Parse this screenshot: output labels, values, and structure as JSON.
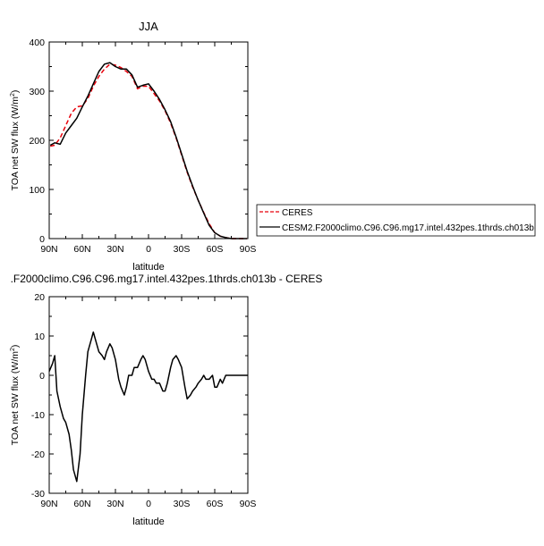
{
  "chart_data": [
    {
      "type": "line",
      "title": "JJA",
      "xlabel": "latitude",
      "ylabel": "TOA net SW flux (W/m",
      "ylabel_sup": "2",
      "ylabel_close": ")",
      "xlim": [
        90,
        -90
      ],
      "ylim": [
        0,
        400
      ],
      "xtick_values": [
        90,
        60,
        30,
        0,
        -30,
        -60,
        -90
      ],
      "xtick_labels": [
        "90N",
        "60N",
        "30N",
        "0",
        "30S",
        "60S",
        "90S"
      ],
      "ytick_values": [
        0,
        100,
        200,
        300,
        400
      ],
      "ytick_labels": [
        "0",
        "100",
        "200",
        "300",
        "400"
      ],
      "grid": false,
      "legend_position": "right of plot",
      "series": [
        {
          "name": "CERES",
          "color": "#e8000b",
          "dash": "dashed",
          "x": [
            89,
            85,
            80,
            75,
            70,
            65,
            60,
            55,
            50,
            45,
            40,
            35,
            30,
            25,
            20,
            15,
            10,
            5,
            0,
            -5,
            -10,
            -15,
            -20,
            -25,
            -30,
            -35,
            -40,
            -45,
            -50,
            -55,
            -60,
            -65,
            -70,
            -75,
            -80,
            -85,
            -89
          ],
          "y": [
            188,
            190,
            205,
            230,
            255,
            268,
            270,
            285,
            310,
            330,
            345,
            355,
            353,
            348,
            340,
            330,
            305,
            310,
            310,
            295,
            280,
            260,
            235,
            205,
            170,
            135,
            105,
            78,
            53,
            30,
            12,
            5,
            2,
            0,
            0,
            0,
            0
          ]
        },
        {
          "name": "CESM2.F2000climo.C96.C96.mg17.intel.432pes.1thrds.ch013b",
          "color": "#000000",
          "dash": "solid",
          "x": [
            89,
            85,
            80,
            75,
            70,
            65,
            60,
            55,
            50,
            45,
            40,
            35,
            30,
            25,
            20,
            15,
            10,
            5,
            0,
            -5,
            -10,
            -15,
            -20,
            -25,
            -30,
            -35,
            -40,
            -45,
            -50,
            -55,
            -60,
            -65,
            -70,
            -75,
            -80,
            -85,
            -89
          ],
          "y": [
            190,
            195,
            192,
            215,
            230,
            245,
            268,
            290,
            315,
            340,
            355,
            358,
            350,
            345,
            345,
            333,
            308,
            312,
            315,
            300,
            283,
            262,
            238,
            207,
            172,
            137,
            107,
            78,
            52,
            27,
            12,
            5,
            2,
            0,
            0,
            0,
            0
          ]
        }
      ]
    },
    {
      "type": "line",
      "title": ".F2000climo.C96.C96.mg17.intel.432pes.1thrds.ch013b - CERES",
      "xlabel": "latitude",
      "ylabel": "TOA net SW flux (W/m",
      "ylabel_sup": "2",
      "ylabel_close": ")",
      "xlim": [
        90,
        -90
      ],
      "ylim": [
        -30,
        20
      ],
      "xtick_values": [
        90,
        60,
        30,
        0,
        -30,
        -60,
        -90
      ],
      "xtick_labels": [
        "90N",
        "60N",
        "30N",
        "0",
        "30S",
        "60S",
        "90S"
      ],
      "ytick_values": [
        -30,
        -20,
        -10,
        0,
        10,
        20
      ],
      "ytick_labels": [
        "-30",
        "-20",
        "-10",
        "0",
        "10",
        "20"
      ],
      "grid": false,
      "series": [
        {
          "color": "#000000",
          "dash": "solid",
          "x": [
            90,
            87,
            85,
            83,
            80,
            77,
            75,
            72,
            70,
            68,
            65,
            62,
            60,
            57,
            55,
            52,
            50,
            47,
            45,
            42,
            40,
            38,
            35,
            33,
            30,
            27,
            25,
            22,
            20,
            18,
            15,
            13,
            10,
            7,
            5,
            3,
            0,
            -3,
            -5,
            -7,
            -10,
            -13,
            -15,
            -17,
            -20,
            -22,
            -25,
            -27,
            -30,
            -33,
            -35,
            -38,
            -40,
            -43,
            -45,
            -48,
            -50,
            -52,
            -55,
            -58,
            -60,
            -62,
            -65,
            -67,
            -70,
            -73,
            -75,
            -78,
            -80,
            -85,
            -90
          ],
          "y": [
            1,
            3,
            5,
            -4,
            -8,
            -11,
            -12,
            -15,
            -19,
            -24,
            -27,
            -20,
            -10,
            0,
            6,
            9,
            11,
            8,
            6,
            5,
            4,
            6,
            8,
            7,
            4,
            -1,
            -3,
            -5,
            -3,
            0,
            0,
            2,
            2,
            4,
            5,
            4,
            1,
            -1,
            -1,
            -2,
            -2,
            -4,
            -4,
            -2,
            2,
            4,
            5,
            4,
            2,
            -3,
            -6,
            -5,
            -4,
            -3,
            -2,
            -1,
            0,
            -1,
            -1,
            0,
            -3,
            -3,
            -1,
            -2,
            0,
            0,
            0,
            0,
            0,
            0,
            0
          ]
        }
      ]
    }
  ]
}
